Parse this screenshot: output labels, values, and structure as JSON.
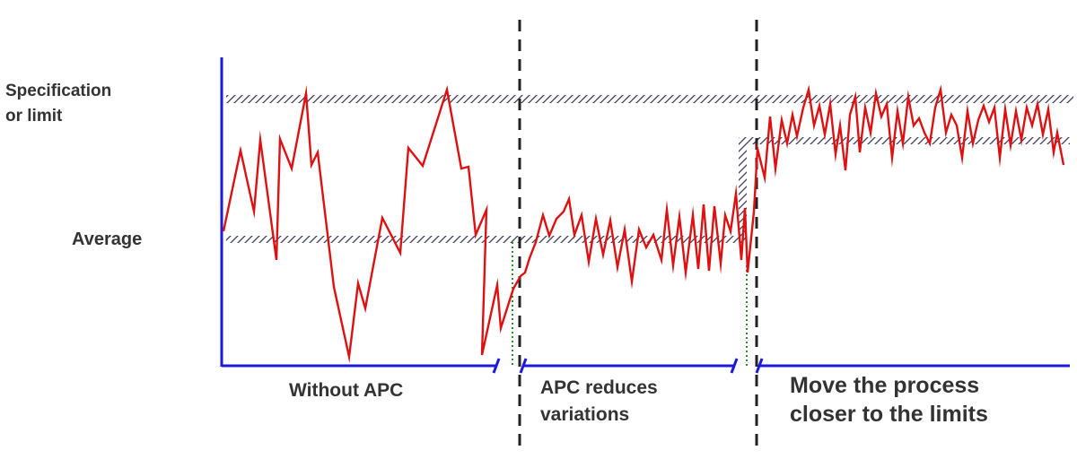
{
  "labels": {
    "spec_line1": "Specification",
    "spec_line2": "or limit",
    "average": "Average"
  },
  "stages": [
    {
      "name": "Without APC",
      "line1": "Without APC",
      "line2": ""
    },
    {
      "name": "APC reduces variations",
      "line1": "APC reduces",
      "line2": "variations"
    },
    {
      "name": "Move the process closer to the limits",
      "line1": "Move the process",
      "line2": "closer to the limits"
    }
  ],
  "colors": {
    "signal": "#dd1111",
    "axis": "#1a1adb",
    "divider": "#222222",
    "hatch": "#3a3a5a",
    "transition": "#2e8b2e",
    "text": "#333333"
  }
}
